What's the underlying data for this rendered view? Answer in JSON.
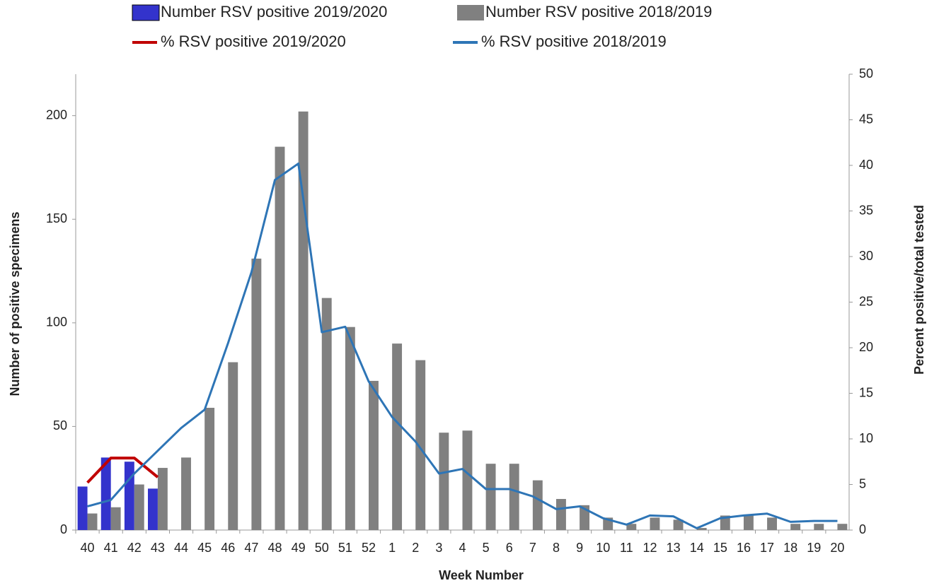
{
  "chart_data": {
    "type": "bar",
    "x_label": "Week Number",
    "y_label": "Number of positive specimens",
    "y2_label": "Percent positive/total tested",
    "categories": [
      "40",
      "41",
      "42",
      "43",
      "44",
      "45",
      "46",
      "47",
      "48",
      "49",
      "50",
      "51",
      "52",
      "1",
      "2",
      "3",
      "4",
      "5",
      "6",
      "7",
      "8",
      "9",
      "10",
      "11",
      "12",
      "13",
      "14",
      "15",
      "16",
      "17",
      "18",
      "19",
      "20"
    ],
    "series": [
      {
        "name": "Number RSV positive 2019/2020",
        "type": "bar",
        "color": "#3333cc",
        "values": [
          21,
          35,
          33,
          20,
          null,
          null,
          null,
          null,
          null,
          null,
          null,
          null,
          null,
          null,
          null,
          null,
          null,
          null,
          null,
          null,
          null,
          null,
          null,
          null,
          null,
          null,
          null,
          null,
          null,
          null,
          null,
          null,
          null
        ]
      },
      {
        "name": "Number RSV positive 2018/2019",
        "type": "bar",
        "color": "#808080",
        "values": [
          8,
          11,
          22,
          30,
          35,
          59,
          81,
          131,
          185,
          202,
          112,
          98,
          72,
          90,
          82,
          47,
          48,
          32,
          32,
          24,
          15,
          12,
          6,
          3,
          6,
          5,
          1,
          7,
          7,
          6,
          3,
          3,
          3
        ]
      },
      {
        "name": "% RSV positive 2019/2020",
        "type": "line",
        "axis": "y2",
        "color": "#c00000",
        "values": [
          5.2,
          7.9,
          7.9,
          5.8,
          null,
          null,
          null,
          null,
          null,
          null,
          null,
          null,
          null,
          null,
          null,
          null,
          null,
          null,
          null,
          null,
          null,
          null,
          null,
          null,
          null,
          null,
          null,
          null,
          null,
          null,
          null,
          null,
          null
        ]
      },
      {
        "name": "% RSV positive 2018/2019",
        "type": "line",
        "axis": "y2",
        "color": "#2e75b6",
        "values": [
          2.6,
          3.3,
          6.2,
          8.7,
          11.2,
          13.2,
          20.5,
          28.3,
          38.4,
          40.2,
          21.7,
          22.3,
          16.3,
          12.4,
          9.7,
          6.2,
          6.7,
          4.5,
          4.5,
          3.7,
          2.3,
          2.6,
          1.3,
          0.6,
          1.6,
          1.5,
          0.2,
          1.3,
          1.6,
          1.8,
          0.9,
          1.0,
          1.0
        ]
      }
    ],
    "ylim": [
      0,
      220
    ],
    "yticks": [
      0,
      50,
      100,
      150,
      200
    ],
    "y2lim": [
      0,
      50
    ],
    "y2ticks": [
      0,
      5,
      10,
      15,
      20,
      25,
      30,
      35,
      40,
      45,
      50
    ],
    "grid": false
  }
}
